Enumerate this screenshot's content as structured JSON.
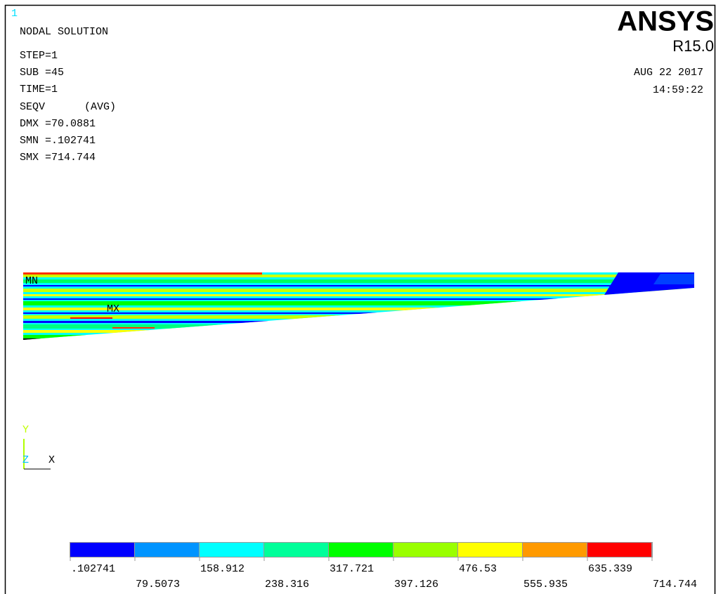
{
  "window_number": "1",
  "header": {
    "title": "NODAL SOLUTION",
    "step": "STEP=1",
    "sub": "SUB =45",
    "time": "TIME=1",
    "quantity": "SEQV",
    "averaging": "(AVG)",
    "dmx": "DMX =70.0881",
    "smn": "SMN =.102741",
    "smx": "SMX =714.744"
  },
  "brand": {
    "name": "ANSYS",
    "version": "R15.0",
    "date": "AUG 22 2017",
    "clock": "14:59:22"
  },
  "plot": {
    "min_label": "MN",
    "max_label": "MX"
  },
  "triad": {
    "y": "Y",
    "z": "Z",
    "x": "X"
  },
  "legend": {
    "colors": [
      "#0000ff",
      "#0094ff",
      "#00ffff",
      "#00ff9a",
      "#00ff00",
      "#9aff00",
      "#ffff00",
      "#ff9a00",
      "#ff0000"
    ],
    "labels": [
      ".102741",
      "79.5073",
      "158.912",
      "238.316",
      "317.721",
      "397.126",
      "476.53",
      "555.935",
      "635.339",
      "714.744"
    ]
  }
}
